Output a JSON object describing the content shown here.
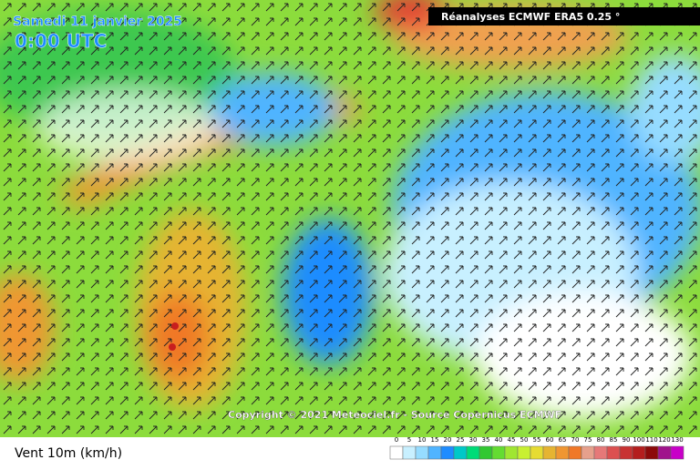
{
  "header": {
    "date": "Samedi 11 janvier 2025",
    "time": "0:00 UTC",
    "source": "Réanalyses ECMWF ERA5 0.25 °"
  },
  "copyright": "Copyright © 2021 Meteociel.fr - Source Copernicus ECMWF",
  "footer": {
    "label": "Vent 10m (km/h)",
    "scale": [
      {
        "value": 0,
        "color": "#ffffff"
      },
      {
        "value": 5,
        "color": "#c8f0ff"
      },
      {
        "value": 10,
        "color": "#96dcff"
      },
      {
        "value": 15,
        "color": "#50b4ff"
      },
      {
        "value": 20,
        "color": "#1e8cff"
      },
      {
        "value": 25,
        "color": "#00c8c8"
      },
      {
        "value": 30,
        "color": "#00dc78"
      },
      {
        "value": 35,
        "color": "#32c832"
      },
      {
        "value": 40,
        "color": "#64dc32"
      },
      {
        "value": 45,
        "color": "#a0e632"
      },
      {
        "value": 50,
        "color": "#c8f032"
      },
      {
        "value": 55,
        "color": "#e6dc32"
      },
      {
        "value": 60,
        "color": "#e6b432"
      },
      {
        "value": 65,
        "color": "#f09632"
      },
      {
        "value": 70,
        "color": "#f07828"
      },
      {
        "value": 75,
        "color": "#e6a08c"
      },
      {
        "value": 80,
        "color": "#e67878"
      },
      {
        "value": 85,
        "color": "#dc5050"
      },
      {
        "value": 90,
        "color": "#c83232"
      },
      {
        "value": 100,
        "color": "#b41e1e"
      },
      {
        "value": 110,
        "color": "#8c0a0a"
      },
      {
        "value": 120,
        "color": "#a0148c"
      },
      {
        "value": 130,
        "color": "#c800c8"
      }
    ]
  }
}
